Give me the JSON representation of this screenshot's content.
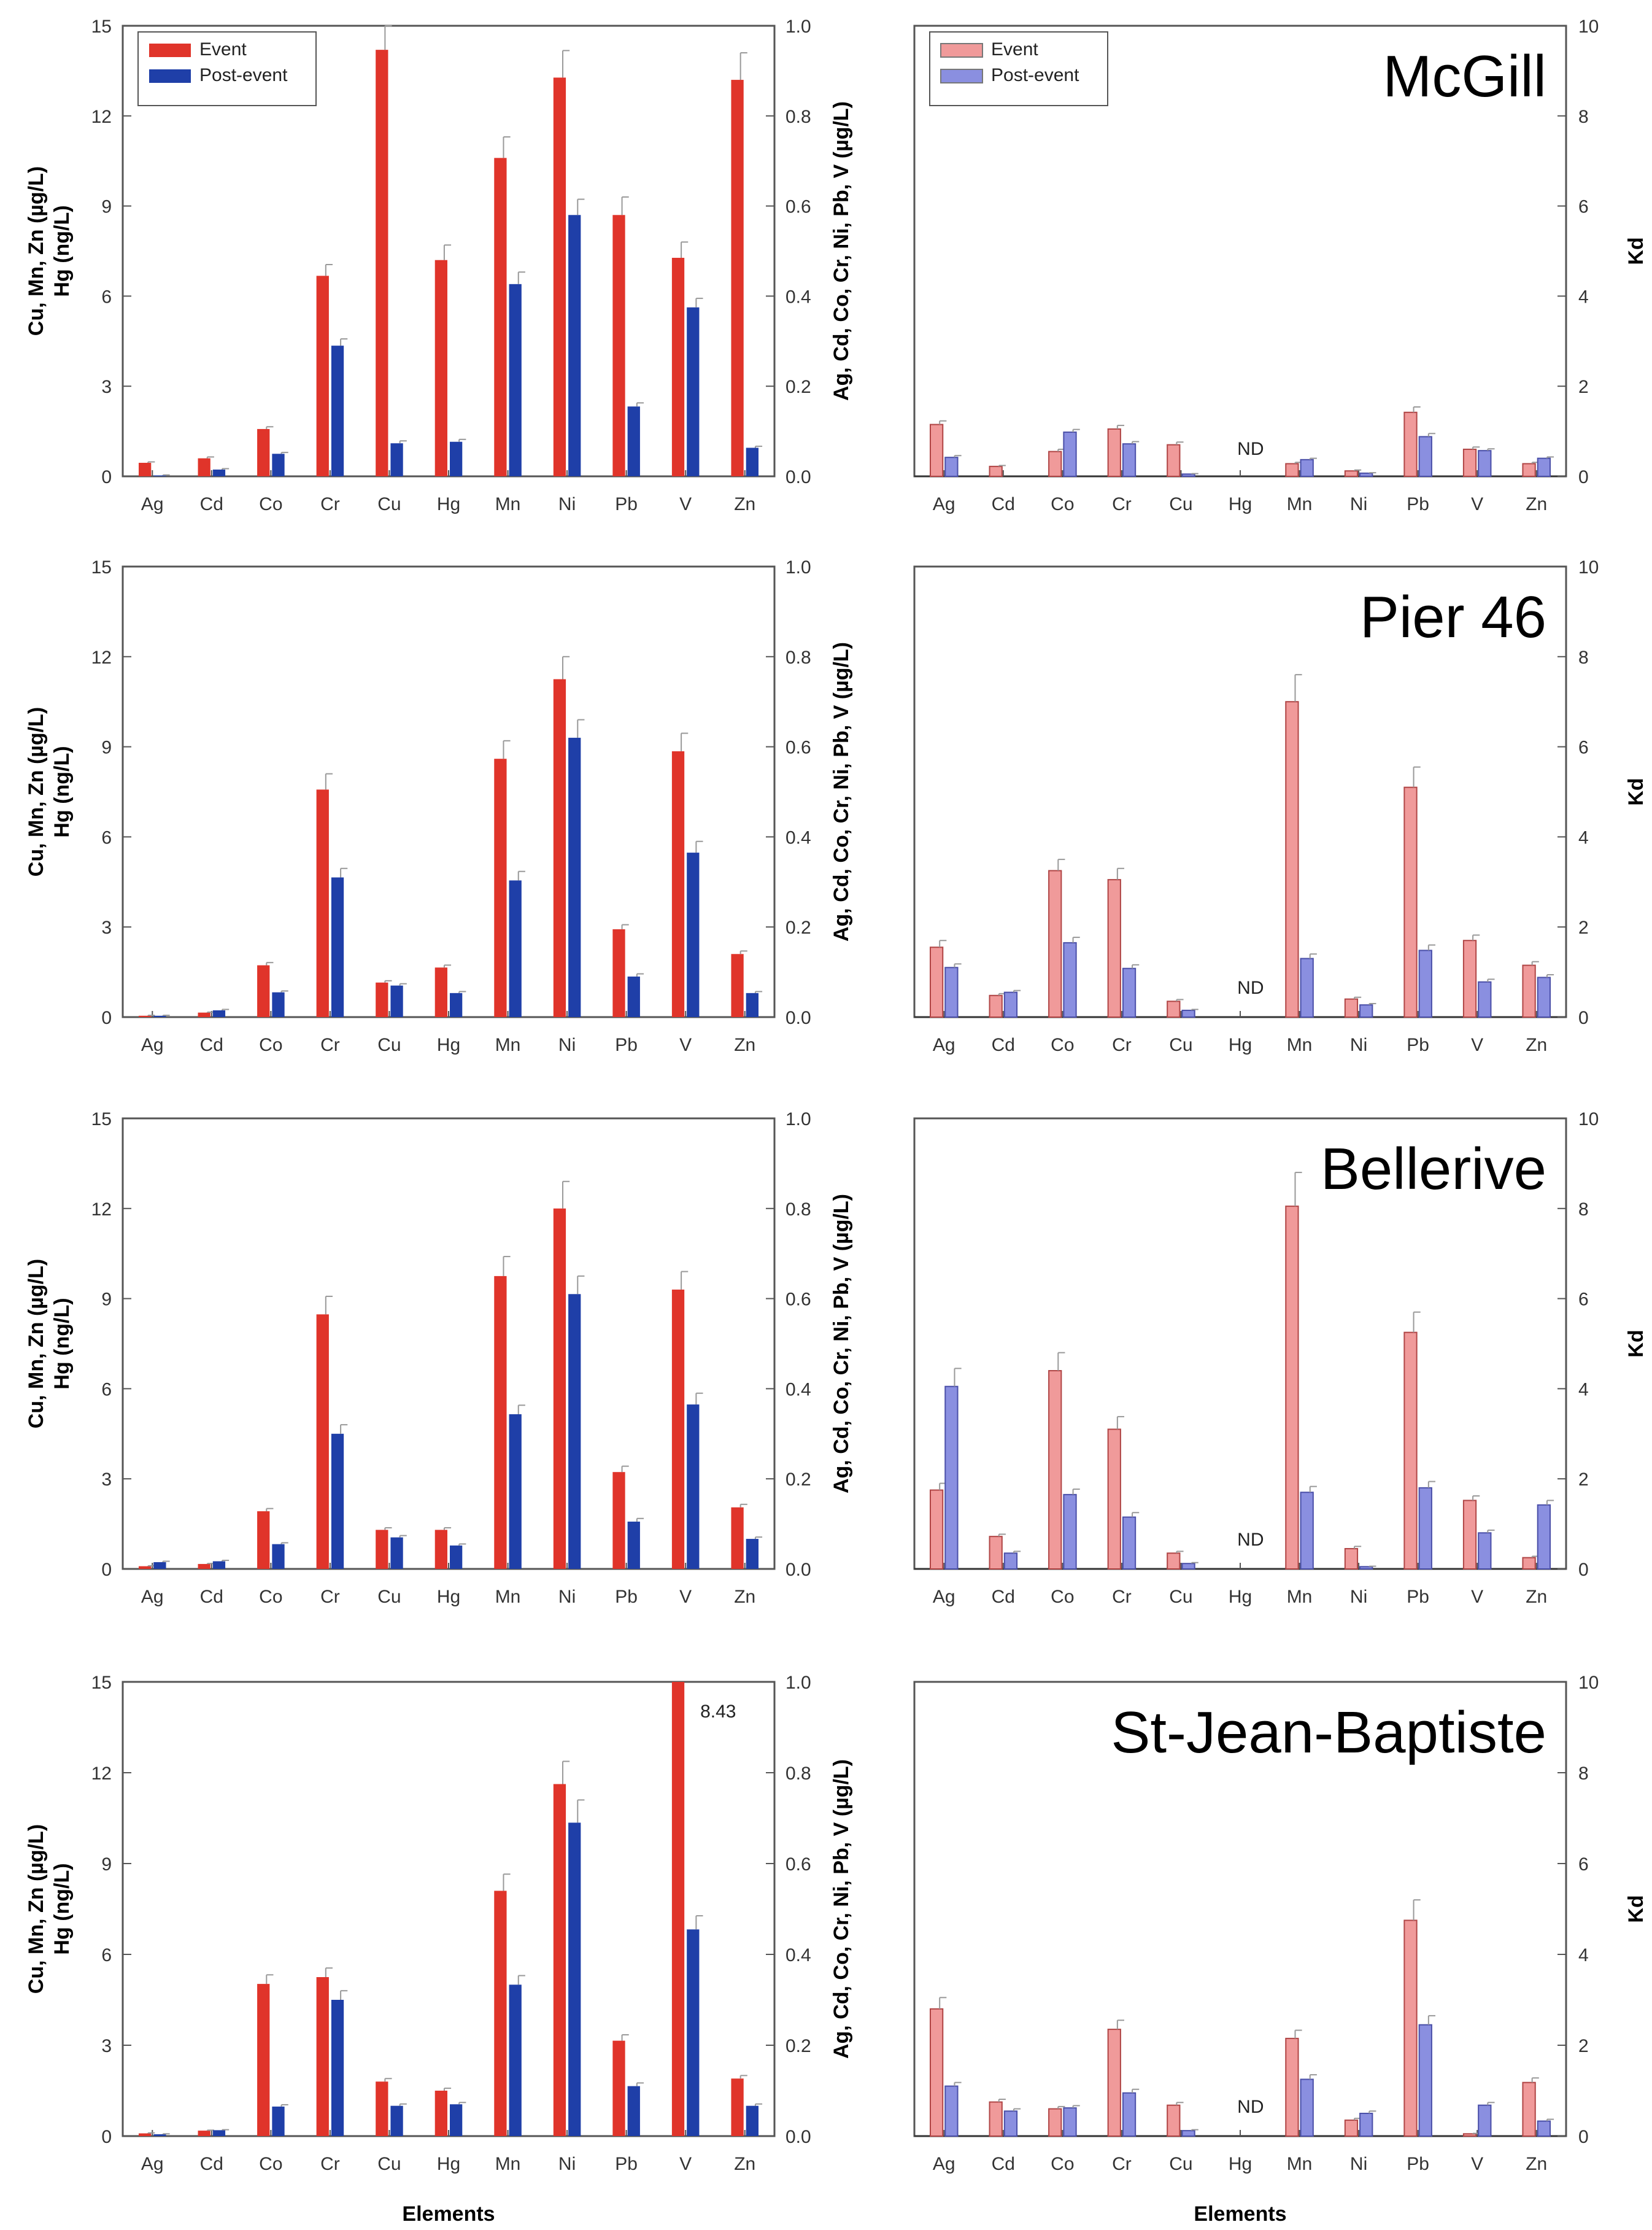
{
  "figure": {
    "xlabel": "Elements",
    "legend": [
      "Event",
      "Post-event"
    ],
    "left_ylabel_lines": [
      "Cu, Mn, Zn (µg/L)",
      "Hg (ng/L)"
    ],
    "right_ylabel": "Ag, Cd, Co, Cr, Ni, Pb, V (µg/L)",
    "kd_ylabel": "Kd",
    "colors": {
      "conc_event": "#e0342a",
      "conc_post": "#1f3fa8",
      "kd_event": "#f09a9a",
      "kd_post": "#8a8fe0",
      "error_bar": "#999999"
    }
  },
  "chart_data": [
    {
      "type": "bar",
      "site": "McGill",
      "panel": "concentration",
      "categories": [
        "Ag",
        "Cd",
        "Co",
        "Cr",
        "Cu",
        "Hg",
        "Mn",
        "Ni",
        "Pb",
        "V",
        "Zn"
      ],
      "left_axis": {
        "ylim": [
          0,
          15
        ],
        "ticks": [
          "0",
          "3",
          "6",
          "9",
          "12",
          "15"
        ],
        "applies_to": [
          "Cu",
          "Mn",
          "Zn",
          "Hg"
        ]
      },
      "right_axis": {
        "ylim": [
          0,
          1.0
        ],
        "ticks": [
          "0.0",
          "0.2",
          "0.4",
          "0.6",
          "0.8",
          "1.0"
        ],
        "applies_to": [
          "Ag",
          "Cd",
          "Co",
          "Cr",
          "Ni",
          "Pb",
          "V"
        ]
      },
      "series": [
        {
          "name": "Event",
          "values": [
            0.03,
            0.04,
            0.105,
            0.445,
            14.2,
            7.2,
            10.6,
            0.885,
            0.58,
            0.485,
            13.2
          ],
          "errors": [
            0.002,
            0.003,
            0.005,
            0.025,
            0.8,
            0.5,
            0.7,
            0.06,
            0.04,
            0.035,
            0.9
          ]
        },
        {
          "name": "Post-event",
          "values": [
            0.002,
            0.015,
            0.05,
            0.29,
            1.1,
            1.15,
            6.4,
            0.58,
            0.155,
            0.375,
            0.95
          ],
          "errors": [
            0.001,
            0.002,
            0.003,
            0.015,
            0.08,
            0.08,
            0.4,
            0.035,
            0.008,
            0.02,
            0.05
          ]
        }
      ],
      "annotations": []
    },
    {
      "type": "bar",
      "site": "McGill",
      "panel": "kd",
      "title": "McGill",
      "categories": [
        "Ag",
        "Cd",
        "Co",
        "Cr",
        "Cu",
        "Hg",
        "Mn",
        "Ni",
        "Pb",
        "V",
        "Zn"
      ],
      "ylabel": "Kd",
      "ylim": [
        0,
        10
      ],
      "ticks": [
        "0",
        "2",
        "4",
        "6",
        "8",
        "10"
      ],
      "series": [
        {
          "name": "Event",
          "values": [
            1.15,
            0.22,
            0.55,
            1.05,
            0.7,
            null,
            0.28,
            0.12,
            1.42,
            0.6,
            0.28
          ],
          "errors": [
            0.08,
            0.02,
            0.05,
            0.08,
            0.06,
            null,
            0.03,
            0.02,
            0.12,
            0.05,
            0.03
          ]
        },
        {
          "name": "Post-event",
          "values": [
            0.42,
            0.0,
            0.98,
            0.72,
            0.05,
            null,
            0.37,
            0.07,
            0.88,
            0.57,
            0.4
          ],
          "errors": [
            0.04,
            0.0,
            0.06,
            0.05,
            0.01,
            null,
            0.03,
            0.01,
            0.07,
            0.04,
            0.03
          ]
        }
      ],
      "annotations": [
        {
          "category": "Hg",
          "text": "ND"
        }
      ]
    },
    {
      "type": "bar",
      "site": "Pier 46",
      "panel": "concentration",
      "categories": [
        "Ag",
        "Cd",
        "Co",
        "Cr",
        "Cu",
        "Hg",
        "Mn",
        "Ni",
        "Pb",
        "V",
        "Zn"
      ],
      "left_axis": {
        "ylim": [
          0,
          15
        ],
        "ticks": [
          "0",
          "3",
          "6",
          "9",
          "12",
          "15"
        ],
        "applies_to": [
          "Cu",
          "Mn",
          "Zn",
          "Hg"
        ]
      },
      "right_axis": {
        "ylim": [
          0,
          1.0
        ],
        "ticks": [
          "0.0",
          "0.2",
          "0.4",
          "0.6",
          "0.8",
          "1.0"
        ],
        "applies_to": [
          "Ag",
          "Cd",
          "Co",
          "Cr",
          "Ni",
          "Pb",
          "V"
        ]
      },
      "series": [
        {
          "name": "Event",
          "values": [
            0.003,
            0.01,
            0.115,
            0.505,
            1.15,
            1.65,
            8.6,
            0.75,
            0.195,
            0.59,
            2.1
          ],
          "errors": [
            0.001,
            0.001,
            0.006,
            0.035,
            0.06,
            0.08,
            0.6,
            0.05,
            0.01,
            0.04,
            0.1
          ]
        },
        {
          "name": "Post-event",
          "values": [
            0.003,
            0.015,
            0.055,
            0.31,
            1.05,
            0.8,
            4.55,
            0.62,
            0.09,
            0.365,
            0.8
          ],
          "errors": [
            0.001,
            0.002,
            0.003,
            0.02,
            0.06,
            0.05,
            0.3,
            0.04,
            0.006,
            0.025,
            0.05
          ]
        }
      ],
      "annotations": []
    },
    {
      "type": "bar",
      "site": "Pier 46",
      "panel": "kd",
      "title": "Pier 46",
      "categories": [
        "Ag",
        "Cd",
        "Co",
        "Cr",
        "Cu",
        "Hg",
        "Mn",
        "Ni",
        "Pb",
        "V",
        "Zn"
      ],
      "ylabel": "Kd",
      "ylim": [
        0,
        10
      ],
      "ticks": [
        "0",
        "2",
        "4",
        "6",
        "8",
        "10"
      ],
      "series": [
        {
          "name": "Event",
          "values": [
            1.55,
            0.48,
            3.25,
            3.05,
            0.35,
            null,
            7.0,
            0.4,
            5.1,
            1.7,
            1.15
          ],
          "errors": [
            0.15,
            0.04,
            0.25,
            0.25,
            0.04,
            null,
            0.6,
            0.04,
            0.45,
            0.12,
            0.08
          ]
        },
        {
          "name": "Post-event",
          "values": [
            1.1,
            0.55,
            1.65,
            1.08,
            0.15,
            null,
            1.3,
            0.27,
            1.48,
            0.78,
            0.88
          ],
          "errors": [
            0.08,
            0.04,
            0.12,
            0.08,
            0.02,
            null,
            0.1,
            0.03,
            0.12,
            0.06,
            0.06
          ]
        }
      ],
      "annotations": [
        {
          "category": "Hg",
          "text": "ND"
        }
      ]
    },
    {
      "type": "bar",
      "site": "Bellerive",
      "panel": "concentration",
      "categories": [
        "Ag",
        "Cd",
        "Co",
        "Cr",
        "Cu",
        "Hg",
        "Mn",
        "Ni",
        "Pb",
        "V",
        "Zn"
      ],
      "left_axis": {
        "ylim": [
          0,
          15
        ],
        "ticks": [
          "0",
          "3",
          "6",
          "9",
          "12",
          "15"
        ],
        "applies_to": [
          "Cu",
          "Mn",
          "Zn",
          "Hg"
        ]
      },
      "right_axis": {
        "ylim": [
          0,
          1.0
        ],
        "ticks": [
          "0.0",
          "0.2",
          "0.4",
          "0.6",
          "0.8",
          "1.0"
        ],
        "applies_to": [
          "Ag",
          "Cd",
          "Co",
          "Cr",
          "Ni",
          "Pb",
          "V"
        ]
      },
      "series": [
        {
          "name": "Event",
          "values": [
            0.006,
            0.011,
            0.128,
            0.565,
            1.3,
            1.3,
            9.75,
            0.8,
            0.215,
            0.62,
            2.05
          ],
          "errors": [
            0.001,
            0.001,
            0.006,
            0.04,
            0.07,
            0.07,
            0.65,
            0.06,
            0.013,
            0.04,
            0.1
          ]
        },
        {
          "name": "Post-event",
          "values": [
            0.015,
            0.017,
            0.055,
            0.3,
            1.05,
            0.78,
            5.15,
            0.61,
            0.105,
            0.365,
            1.0
          ],
          "errors": [
            0.002,
            0.002,
            0.003,
            0.02,
            0.06,
            0.05,
            0.3,
            0.04,
            0.007,
            0.025,
            0.06
          ]
        }
      ],
      "annotations": []
    },
    {
      "type": "bar",
      "site": "Bellerive",
      "panel": "kd",
      "title": "Bellerive",
      "categories": [
        "Ag",
        "Cd",
        "Co",
        "Cr",
        "Cu",
        "Hg",
        "Mn",
        "Ni",
        "Pb",
        "V",
        "Zn"
      ],
      "ylabel": "Kd",
      "ylim": [
        0,
        10
      ],
      "ticks": [
        "0",
        "2",
        "4",
        "6",
        "8",
        "10"
      ],
      "series": [
        {
          "name": "Event",
          "values": [
            1.75,
            0.72,
            4.4,
            3.1,
            0.35,
            null,
            8.05,
            0.45,
            5.25,
            1.52,
            0.25
          ],
          "errors": [
            0.15,
            0.05,
            0.4,
            0.28,
            0.04,
            null,
            0.75,
            0.05,
            0.45,
            0.1,
            0.03
          ]
        },
        {
          "name": "Post-event",
          "values": [
            4.05,
            0.35,
            1.65,
            1.15,
            0.12,
            null,
            1.7,
            0.05,
            1.8,
            0.8,
            1.42
          ],
          "errors": [
            0.4,
            0.04,
            0.12,
            0.1,
            0.02,
            null,
            0.13,
            0.01,
            0.14,
            0.06,
            0.1
          ]
        }
      ],
      "annotations": [
        {
          "category": "Hg",
          "text": "ND"
        }
      ]
    },
    {
      "type": "bar",
      "site": "St-Jean-Baptiste",
      "panel": "concentration",
      "categories": [
        "Ag",
        "Cd",
        "Co",
        "Cr",
        "Cu",
        "Hg",
        "Mn",
        "Ni",
        "Pb",
        "V",
        "Zn"
      ],
      "left_axis": {
        "ylim": [
          0,
          15
        ],
        "ticks": [
          "0",
          "3",
          "6",
          "9",
          "12",
          "15"
        ],
        "applies_to": [
          "Cu",
          "Mn",
          "Zn",
          "Hg"
        ]
      },
      "right_axis": {
        "ylim": [
          0,
          1.0
        ],
        "ticks": [
          "0.0",
          "0.2",
          "0.4",
          "0.6",
          "0.8",
          "1.0"
        ],
        "applies_to": [
          "Ag",
          "Cd",
          "Co",
          "Cr",
          "Ni",
          "Pb",
          "V"
        ]
      },
      "series": [
        {
          "name": "Event",
          "values": [
            0.006,
            0.012,
            0.335,
            0.35,
            1.8,
            1.5,
            8.1,
            0.775,
            0.21,
            8.43,
            1.9
          ],
          "errors": [
            0.001,
            0.001,
            0.02,
            0.02,
            0.1,
            0.08,
            0.55,
            0.05,
            0.013,
            null,
            0.1
          ]
        },
        {
          "name": "Post-event",
          "values": [
            0.004,
            0.013,
            0.065,
            0.3,
            1.0,
            1.05,
            5.0,
            0.69,
            0.11,
            0.455,
            1.0
          ],
          "errors": [
            0.001,
            0.001,
            0.004,
            0.02,
            0.06,
            0.06,
            0.3,
            0.05,
            0.007,
            0.03,
            0.06
          ]
        }
      ],
      "annotations": [
        {
          "category": "V",
          "text": "8.43"
        }
      ]
    },
    {
      "type": "bar",
      "site": "St-Jean-Baptiste",
      "panel": "kd",
      "title": "St-Jean-Baptiste",
      "categories": [
        "Ag",
        "Cd",
        "Co",
        "Cr",
        "Cu",
        "Hg",
        "Mn",
        "Ni",
        "Pb",
        "V",
        "Zn"
      ],
      "ylabel": "Kd",
      "ylim": [
        0,
        10
      ],
      "ticks": [
        "0",
        "2",
        "4",
        "6",
        "8",
        "10"
      ],
      "series": [
        {
          "name": "Event",
          "values": [
            2.8,
            0.75,
            0.6,
            2.35,
            0.68,
            null,
            2.15,
            0.35,
            4.75,
            0.05,
            1.18
          ],
          "errors": [
            0.25,
            0.06,
            0.05,
            0.2,
            0.06,
            null,
            0.18,
            0.04,
            0.45,
            0.01,
            0.1
          ]
        },
        {
          "name": "Post-event",
          "values": [
            1.1,
            0.55,
            0.62,
            0.95,
            0.12,
            null,
            1.25,
            0.5,
            2.45,
            0.68,
            0.33
          ],
          "errors": [
            0.08,
            0.05,
            0.05,
            0.08,
            0.02,
            null,
            0.1,
            0.05,
            0.2,
            0.06,
            0.04
          ]
        }
      ],
      "annotations": [
        {
          "category": "Hg",
          "text": "ND"
        }
      ]
    }
  ]
}
